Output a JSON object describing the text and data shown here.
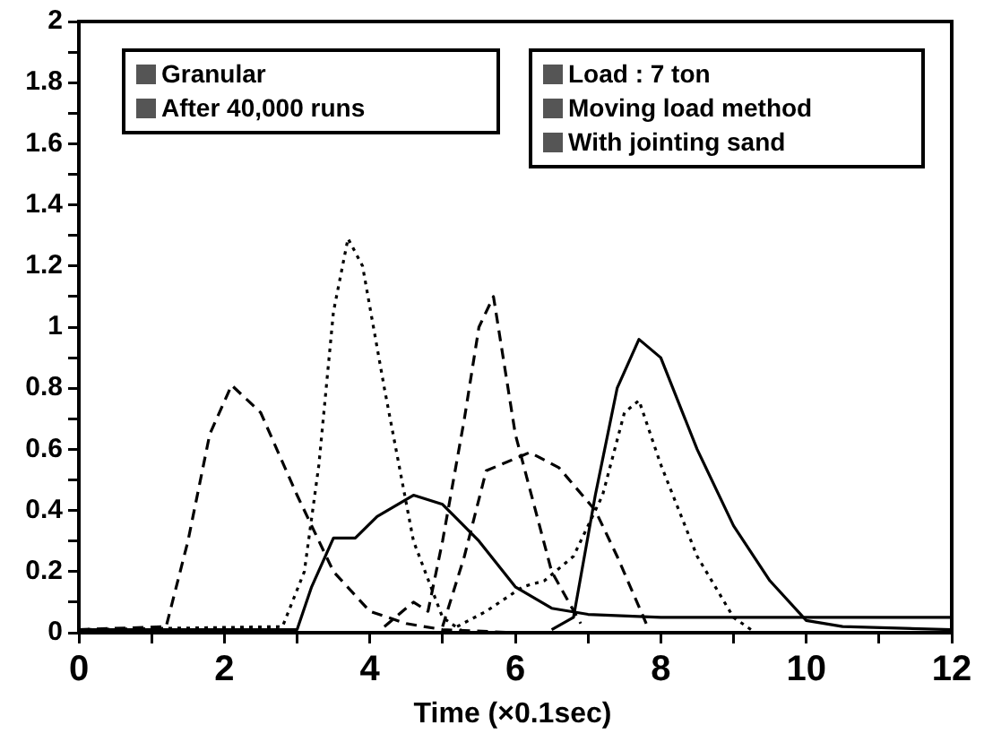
{
  "chart_data": {
    "type": "line",
    "xlabel": "Time (×0.1sec)",
    "annotations": [
      "Granular",
      "After 40,000 runs",
      "Load : 7 ton",
      "Moving load method",
      "With jointing sand"
    ],
    "xlim": [
      0,
      12
    ],
    "xticks": [
      0,
      {
        "value": 1,
        "label": null
      },
      2,
      {
        "value": 3,
        "label": null
      },
      4,
      {
        "value": 5,
        "label": null
      },
      6,
      {
        "value": 7,
        "label": null
      },
      8,
      {
        "value": 9,
        "label": null
      },
      10,
      {
        "value": 11,
        "label": null
      },
      12
    ],
    "ylim": [
      0,
      2
    ],
    "yticks": [
      0,
      {
        "value": 0.1,
        "label": null
      },
      0.2,
      {
        "value": 0.3,
        "label": null
      },
      0.4,
      {
        "value": 0.5,
        "label": null
      },
      0.6,
      {
        "value": 0.7,
        "label": null
      },
      0.8,
      {
        "value": 0.9,
        "label": null
      },
      1,
      {
        "value": 1.1,
        "label": null
      },
      1.2,
      {
        "value": 1.3,
        "label": null
      },
      1.4,
      {
        "value": 1.5,
        "label": null
      },
      1.6,
      {
        "value": 1.7,
        "label": null
      },
      1.8,
      {
        "value": 1.9,
        "label": null
      },
      2
    ],
    "grid": false,
    "legend": false,
    "marker": "none",
    "series": [
      {
        "color": "#000000",
        "line_style": "dashed",
        "x": [
          0,
          1.2,
          1.5,
          1.8,
          2.1,
          2.5,
          3,
          3.5,
          4,
          4.5,
          5,
          6,
          12
        ],
        "values": [
          0.01,
          0.02,
          0.3,
          0.65,
          0.81,
          0.72,
          0.45,
          0.2,
          0.07,
          0.03,
          0.01,
          0,
          0
        ]
      },
      {
        "color": "#000000",
        "line_style": "dotted",
        "x": [
          0,
          2.8,
          3.1,
          3.3,
          3.5,
          3.7,
          3.9,
          4.2,
          4.6,
          5,
          5.3,
          12
        ],
        "values": [
          0.01,
          0.02,
          0.2,
          0.55,
          1.05,
          1.29,
          1.2,
          0.8,
          0.3,
          0.05,
          0,
          0
        ]
      },
      {
        "color": "#000000",
        "line_style": "solid",
        "x": [
          0,
          3,
          3.2,
          3.5,
          3.8,
          4.1,
          4.6,
          5,
          5.5,
          6,
          6.5,
          7,
          8,
          12
        ],
        "values": [
          0.01,
          0.01,
          0.15,
          0.31,
          0.31,
          0.38,
          0.45,
          0.42,
          0.3,
          0.15,
          0.08,
          0.06,
          0.05,
          0.05
        ]
      },
      {
        "color": "#000000",
        "line_style": "dashed",
        "x": [
          4.2,
          4.6,
          4.8,
          5,
          5.3,
          5.5,
          5.7,
          6,
          6.5,
          6.9
        ],
        "values": [
          0.02,
          0.1,
          0.07,
          0.3,
          0.7,
          1,
          1.1,
          0.65,
          0.2,
          0.03
        ]
      },
      {
        "color": "#000000",
        "line_style": "dashed",
        "x": [
          5,
          5.3,
          5.6,
          6,
          6.2,
          6.6,
          7.1,
          7.4,
          7.8
        ],
        "values": [
          0.02,
          0.25,
          0.53,
          0.57,
          0.59,
          0.54,
          0.4,
          0.25,
          0.03
        ]
      },
      {
        "color": "#000000",
        "line_style": "dotted",
        "x": [
          5.2,
          5.6,
          6.1,
          6.4,
          6.8,
          7.2,
          7.5,
          7.7,
          8,
          8.5,
          9,
          9.3
        ],
        "values": [
          0.02,
          0.07,
          0.15,
          0.17,
          0.25,
          0.45,
          0.72,
          0.76,
          0.55,
          0.25,
          0.05,
          0
        ]
      },
      {
        "color": "#000000",
        "line_style": "solid",
        "x": [
          6.5,
          6.8,
          7.1,
          7.4,
          7.7,
          8,
          8.5,
          9,
          9.5,
          10,
          10.5,
          12
        ],
        "values": [
          0.01,
          0.05,
          0.45,
          0.8,
          0.96,
          0.9,
          0.6,
          0.35,
          0.17,
          0.04,
          0.02,
          0.01
        ]
      }
    ]
  }
}
